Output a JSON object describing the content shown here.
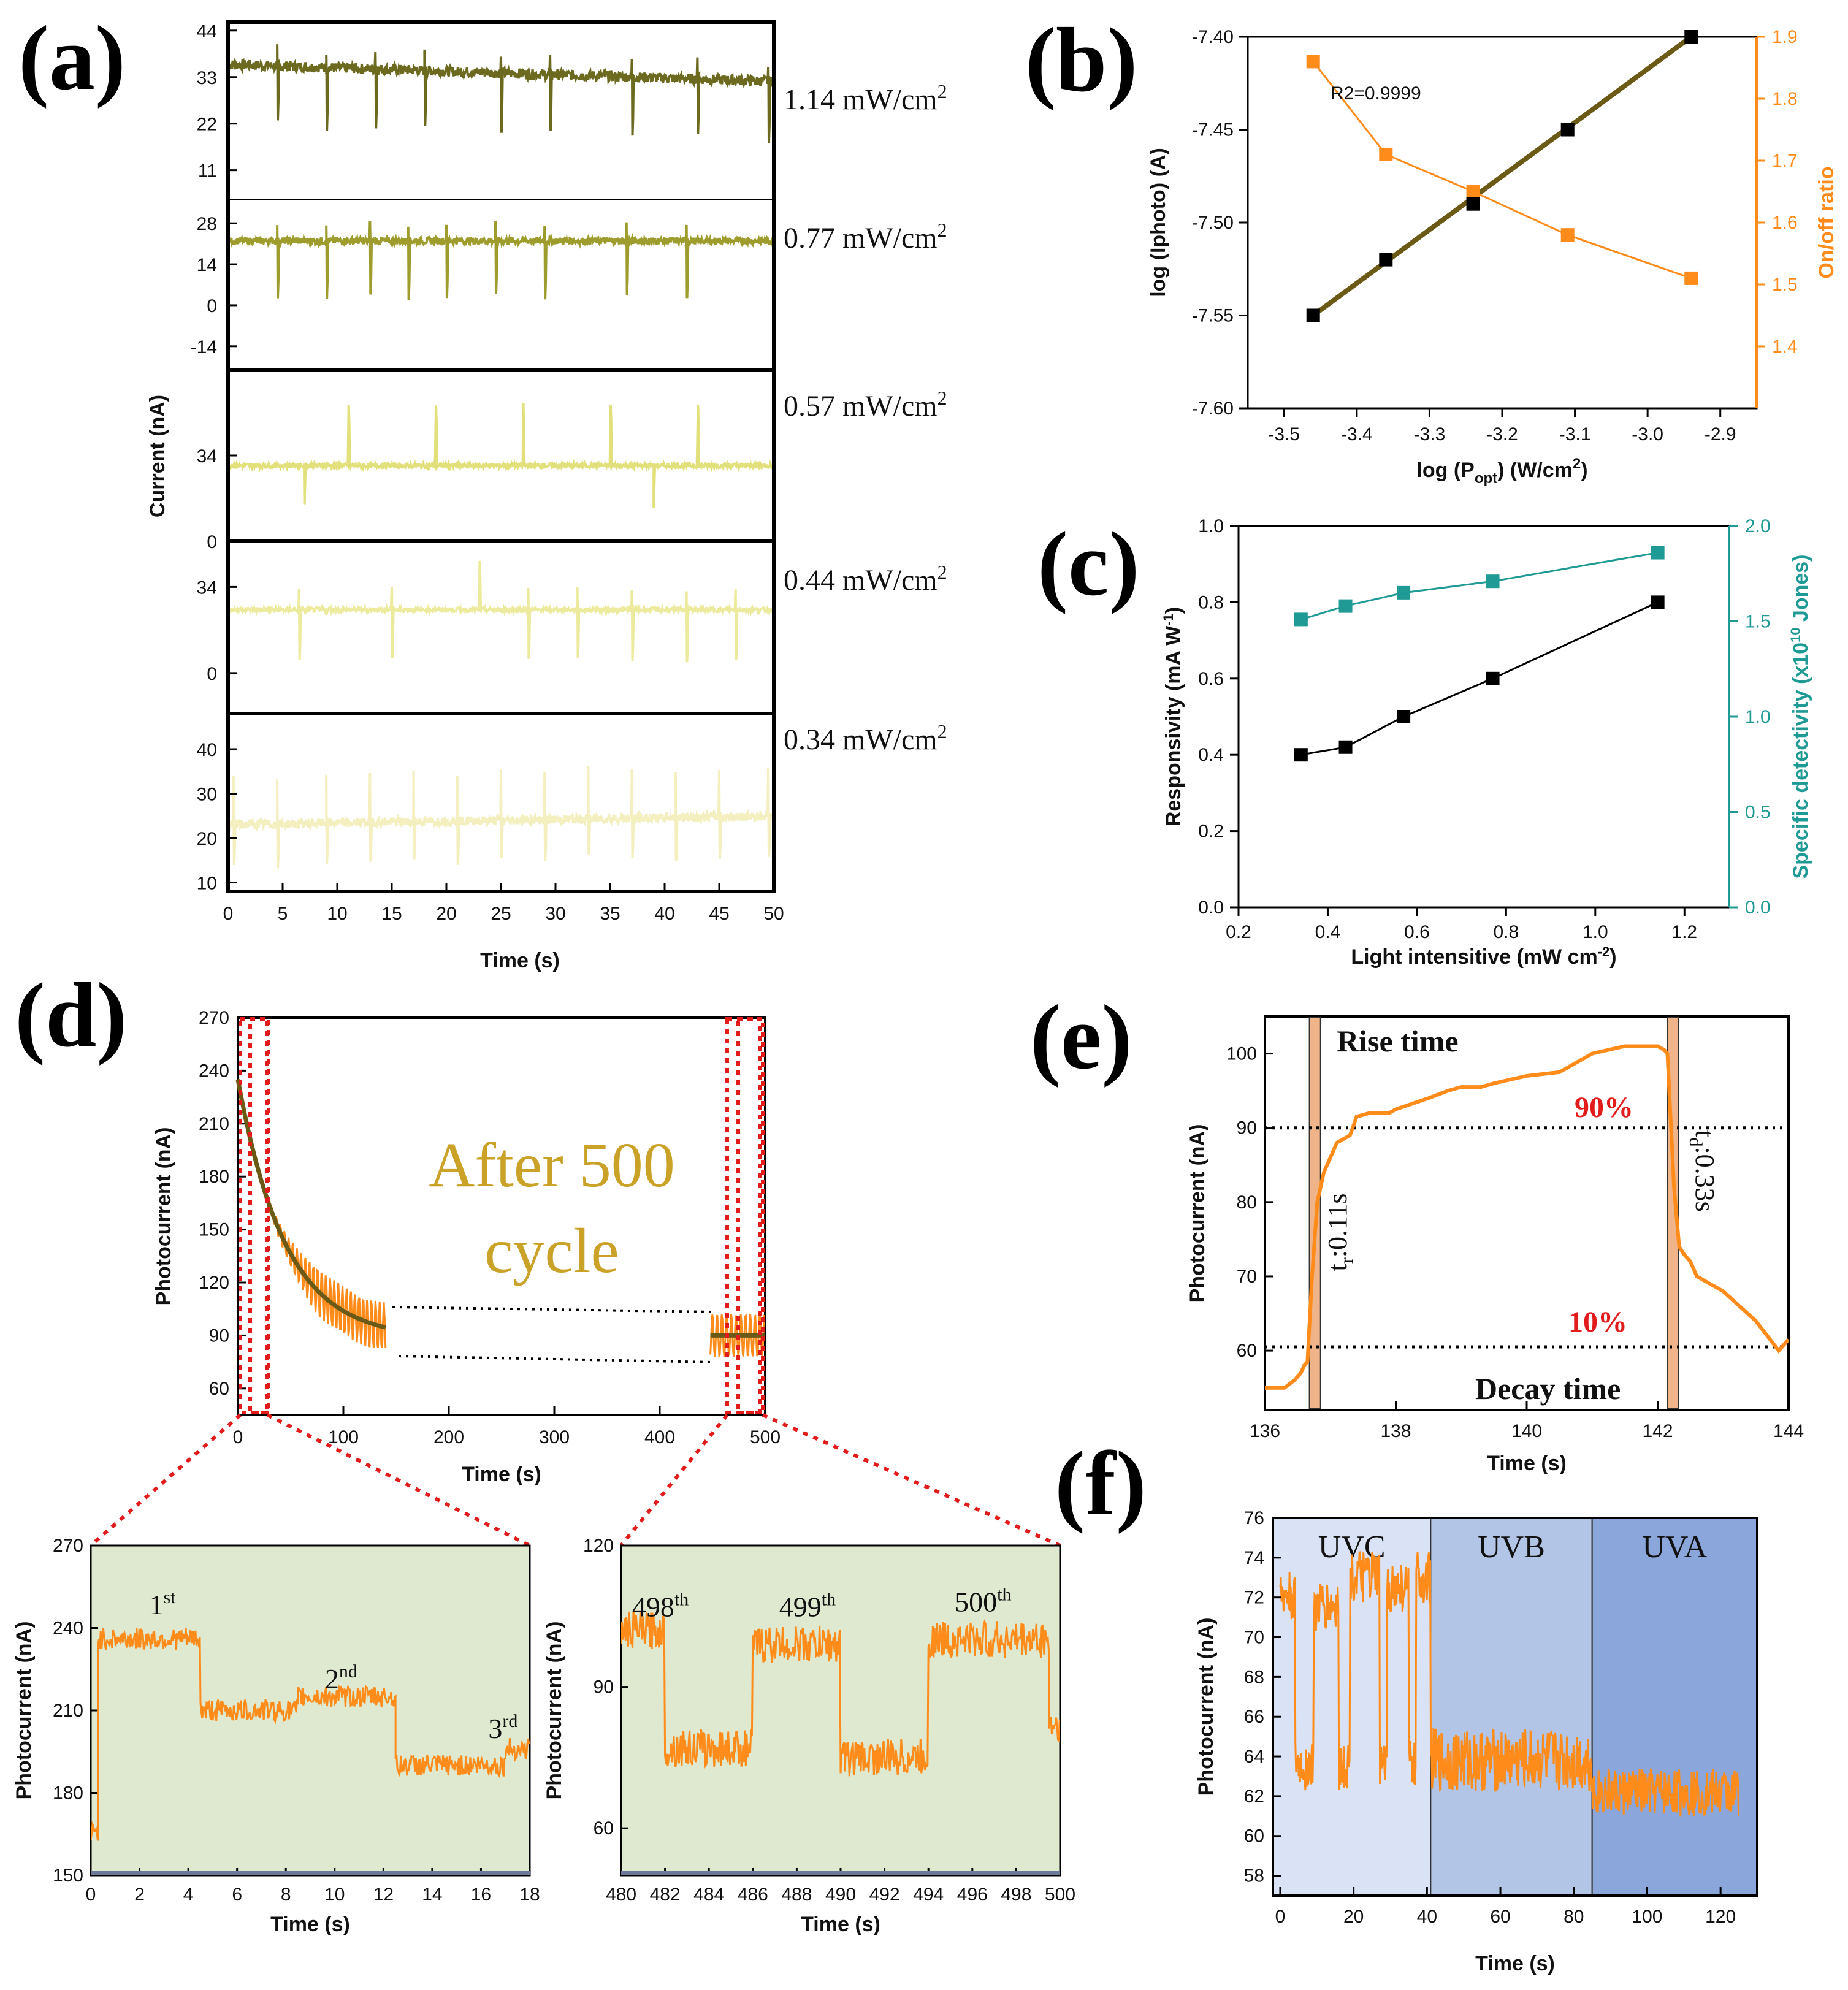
{
  "colors": {
    "olive_dark": "#6b6a1f",
    "olive": "#9d9c2c",
    "yellow_mid": "#e2e07a",
    "yellow_light": "#ecea9c",
    "yellow_pale": "#f3efbf",
    "orange": "#ff8c1a",
    "teal": "#1f9a95",
    "fit_line": "#6b5a16",
    "red_dash": "#e21b1b",
    "green_bg": "#dfe9cf",
    "uvc_bg": "#d9e3f5",
    "uvb_bg": "#b2c5e6",
    "uva_bg": "#8aa6db",
    "gold_text": "#c9a227",
    "bar_fill": "#f0b48a"
  },
  "panel_letters": {
    "a": "(a)",
    "b": "(b)",
    "c": "(c)",
    "d": "(d)",
    "e": "(e)",
    "f": "(f)"
  },
  "chart_data": [
    {
      "id": "a",
      "type": "line",
      "title": "",
      "xlabel": "Time (s)",
      "ylabel": "Current (nA)",
      "xlim": [
        0,
        50
      ],
      "xticks": [
        "0",
        "5",
        "10",
        "15",
        "20",
        "25",
        "30",
        "35",
        "40",
        "45",
        "50"
      ],
      "series": [
        {
          "name": "1.14 mW/cm2",
          "label": "1.14 mW/cm",
          "sup": "2",
          "ylim": [
            4,
            46
          ],
          "yticks": [
            44,
            33,
            22,
            11
          ],
          "ytick_labels": [
            "44",
            "33",
            "22",
            "11"
          ],
          "baseline": 36,
          "end": 32,
          "spike_times": [
            4.5,
            9,
            13.5,
            18,
            25,
            29.5,
            37,
            43,
            49.5
          ],
          "spike_depth": -14,
          "spike_up": 4,
          "noise": 1.2
        },
        {
          "name": "0.77 mW/cm2",
          "label": "0.77 mW/cm",
          "sup": "2",
          "ylim": [
            -22,
            36
          ],
          "yticks": [
            28,
            14,
            0,
            -14
          ],
          "ytick_labels": [
            "28",
            "14",
            "0",
            "-14"
          ],
          "baseline": 22,
          "end": 22,
          "spike_times": [
            4.5,
            9,
            13,
            16.5,
            20,
            24.5,
            29,
            36.5,
            42
          ],
          "spike_depth": -19,
          "spike_up": 6,
          "noise": 1.2
        },
        {
          "name": "0.57 mW/cm2",
          "label": "0.57 mW/cm",
          "sup": "2",
          "ylim": [
            0,
            68
          ],
          "yticks": [
            34,
            0
          ],
          "ytick_labels": [
            "34",
            "0"
          ],
          "baseline": 30,
          "end": 30,
          "spike_times": [
            11,
            19,
            27,
            35,
            43
          ],
          "spike_depth": 24,
          "spike_up": 0,
          "dips": [
            7,
            39
          ],
          "noise": 0.9
        },
        {
          "name": "0.44 mW/cm2",
          "label": "0.44 mW/cm",
          "sup": "2",
          "ylim": [
            -16,
            52
          ],
          "yticks": [
            34,
            0
          ],
          "ytick_labels": [
            "34",
            "0"
          ],
          "baseline": 25,
          "end": 25,
          "spike_times": [
            6.5,
            15,
            23,
            27.5,
            32,
            37,
            42,
            46.5
          ],
          "spike_depth": -20,
          "spike_up": 8,
          "big_up": 19,
          "noise": 0.9
        },
        {
          "name": "0.34 mW/cm2",
          "label": "0.34 mW/cm",
          "sup": "2",
          "ylim": [
            8,
            48
          ],
          "yticks": [
            40,
            30,
            20,
            10
          ],
          "ytick_labels": [
            "40",
            "30",
            "20",
            "10"
          ],
          "baseline": 23,
          "end": 25,
          "spike_times": [
            0.5,
            4.5,
            9,
            13,
            17,
            21,
            25,
            29,
            33,
            37,
            41,
            45,
            49.5
          ],
          "spike_depth": -9,
          "spike_up": 11,
          "noise": 1.0
        }
      ]
    },
    {
      "id": "b",
      "type": "line",
      "xlabel": "log (P",
      "xlabel_sub": "opt",
      "xlabel_tail": ") (W/cm",
      "xlabel_sup": "2",
      "xlabel_end": ")",
      "ylabel": "log (Iphoto) (A)",
      "ylabel_right": "On/off ratio",
      "annotation": "R2=0.9999",
      "xlim": [
        -3.55,
        -2.85
      ],
      "ylim": [
        -7.6,
        -7.4
      ],
      "ylim_right": [
        1.3,
        1.9
      ],
      "xticks": [
        "-3.5",
        "-3.4",
        "-3.3",
        "-3.2",
        "-3.1",
        "-3.0",
        "-2.9"
      ],
      "yticks": [
        "-7.60",
        "-7.55",
        "-7.50",
        "-7.45",
        "-7.40"
      ],
      "yticks_right": [
        "1.4",
        "1.5",
        "1.6",
        "1.7",
        "1.8",
        "1.9"
      ],
      "x": [
        -3.46,
        -3.36,
        -3.24,
        -3.11,
        -2.94
      ],
      "series": [
        {
          "name": "log (Iphoto)",
          "axis": "left",
          "values": [
            -7.55,
            -7.52,
            -7.49,
            -7.45,
            -7.4
          ]
        },
        {
          "name": "On/off ratio",
          "axis": "right",
          "values": [
            1.86,
            1.71,
            1.65,
            1.58,
            1.51
          ]
        }
      ]
    },
    {
      "id": "c",
      "type": "line",
      "xlabel": "Light intensitive (mW cm",
      "xlabel_sup": "-2",
      "xlabel_end": ")",
      "ylabel": "Responsivity (mA W",
      "ylabel_sup": "-1",
      "ylabel_end": ")",
      "ylabel_right": "Specific detectivity (x10",
      "ylabel_right_sup": "10",
      "ylabel_right_end": " Jones)",
      "xlim": [
        0.2,
        1.3
      ],
      "ylim": [
        0.0,
        1.0
      ],
      "ylim_right": [
        0.0,
        2.0
      ],
      "xticks": [
        "0.2",
        "0.4",
        "0.6",
        "0.8",
        "1.0",
        "1.2"
      ],
      "yticks": [
        "0.0",
        "0.2",
        "0.4",
        "0.6",
        "0.8",
        "1.0"
      ],
      "yticks_right": [
        "0.0",
        "0.5",
        "1.0",
        "1.5",
        "2.0"
      ],
      "x": [
        0.34,
        0.44,
        0.57,
        0.77,
        1.14
      ],
      "series": [
        {
          "name": "Responsivity",
          "axis": "left",
          "values": [
            0.4,
            0.42,
            0.5,
            0.6,
            0.8
          ]
        },
        {
          "name": "Specific detectivity",
          "axis": "right",
          "values": [
            1.51,
            1.58,
            1.65,
            1.71,
            1.86
          ]
        }
      ]
    },
    {
      "id": "d",
      "type": "line",
      "xlabel": "Time (s)",
      "ylabel": "Photocurrent (nA)",
      "annotation": "After 500",
      "annotation2": "cycle",
      "xlim": [
        0,
        500
      ],
      "ylim": [
        45,
        270
      ],
      "xticks": [
        "0",
        "100",
        "200",
        "300",
        "400",
        "500"
      ],
      "yticks": [
        "60",
        "90",
        "120",
        "150",
        "180",
        "210",
        "240",
        "270"
      ],
      "fit": {
        "start": 235,
        "plateau": 88,
        "tau": 45,
        "x_end": 140
      },
      "late_level": 90,
      "insets": [
        {
          "xlabel": "Time (s)",
          "ylabel": "Photocurrent (nA)",
          "xlim": [
            0,
            18
          ],
          "ylim": [
            150,
            270
          ],
          "xticks": [
            "0",
            "2",
            "4",
            "6",
            "8",
            "10",
            "12",
            "14",
            "16",
            "18"
          ],
          "yticks": [
            "150",
            "180",
            "210",
            "240",
            "270"
          ],
          "segments": [
            [
              0,
              0.3,
              165
            ],
            [
              0.3,
              4.5,
              236
            ],
            [
              4.5,
              8.5,
              210
            ],
            [
              8.5,
              12.5,
              215
            ],
            [
              12.5,
              17,
              190
            ],
            [
              17,
              18,
              196
            ]
          ],
          "labels": [
            {
              "text": "1",
              "sup": "st",
              "x": 2.4,
              "y": 245
            },
            {
              "text": "2",
              "sup": "nd",
              "x": 9.6,
              "y": 218
            },
            {
              "text": "3",
              "sup": "rd",
              "x": 16.3,
              "y": 200
            }
          ]
        },
        {
          "xlabel": "Time (s)",
          "ylabel": "Photocurrent (nA)",
          "xlim": [
            480,
            500
          ],
          "ylim": [
            50,
            120
          ],
          "xticks": [
            "480",
            "482",
            "484",
            "486",
            "488",
            "490",
            "492",
            "494",
            "496",
            "498",
            "500"
          ],
          "yticks": [
            "60",
            "90",
            "120"
          ],
          "segments": [
            [
              480,
              482,
              102
            ],
            [
              482,
              486,
              77
            ],
            [
              486,
              490,
              99
            ],
            [
              490,
              494,
              75
            ],
            [
              494,
              499.5,
              100
            ],
            [
              499.5,
              500,
              82
            ]
          ],
          "labels": [
            {
              "text": "498",
              "sup": "th",
              "x": 480.5,
              "y": 105
            },
            {
              "text": "499",
              "sup": "th",
              "x": 487.2,
              "y": 105
            },
            {
              "text": "500",
              "sup": "th",
              "x": 495.2,
              "y": 106
            }
          ]
        }
      ]
    },
    {
      "id": "e",
      "type": "line",
      "xlabel": "Time (s)",
      "ylabel": "Photocurrent (nA)",
      "xlim": [
        136,
        144
      ],
      "ylim": [
        52,
        105
      ],
      "xticks": [
        "136",
        "138",
        "140",
        "142",
        "144"
      ],
      "yticks": [
        "60",
        "70",
        "80",
        "90",
        "100"
      ],
      "level_high": 90,
      "level_low": 60.5,
      "level_high_label": "90%",
      "level_low_label": "10%",
      "rise_label": "Rise time",
      "decay_label": "Decay time",
      "tr_label": "t",
      "tr_sub": "r",
      "tr_value": ":0.11s",
      "td_label": "t",
      "td_sub": "d",
      "td_value": ":0.33s",
      "rise_band": [
        136.68,
        136.85
      ],
      "decay_band": [
        142.15,
        142.32
      ],
      "x": [
        136,
        136.3,
        136.45,
        136.55,
        136.6,
        136.65,
        136.72,
        136.8,
        136.9,
        137.0,
        137.1,
        137.3,
        137.4,
        137.6,
        137.9,
        138.0,
        138.5,
        138.8,
        139.0,
        139.3,
        139.5,
        140.0,
        140.5,
        141.0,
        141.5,
        142.0,
        142.1,
        142.15,
        142.25,
        142.33,
        142.4,
        142.5,
        142.6,
        143.0,
        143.5,
        143.85,
        144.0
      ],
      "values": [
        55,
        55,
        56,
        57,
        58,
        58.5,
        70,
        80,
        84,
        86,
        88,
        89,
        91.5,
        92,
        92,
        92.5,
        94,
        95,
        95.5,
        95.5,
        96,
        97,
        97.5,
        100,
        101,
        101,
        100.5,
        100,
        82,
        74,
        73,
        72,
        70,
        68,
        64,
        60,
        61.5
      ]
    },
    {
      "id": "f",
      "type": "line",
      "xlabel": "Time (s)",
      "ylabel": "Photocurrent (nA)",
      "xlim": [
        -2,
        130
      ],
      "ylim": [
        57,
        76
      ],
      "xticks": [
        "0",
        "20",
        "40",
        "60",
        "80",
        "100",
        "120"
      ],
      "yticks": [
        "58",
        "60",
        "62",
        "64",
        "66",
        "68",
        "70",
        "72",
        "74",
        "76"
      ],
      "regions": [
        {
          "name": "UVC",
          "from": -2,
          "to": 41
        },
        {
          "name": "UVB",
          "from": 41,
          "to": 85
        },
        {
          "name": "UVA",
          "from": 85,
          "to": 130
        }
      ],
      "uvc_pulses": [
        [
          0,
          4,
          72
        ],
        [
          9,
          16,
          71.5
        ],
        [
          19,
          27,
          73
        ],
        [
          29,
          35,
          72.5
        ],
        [
          37,
          41,
          73
        ]
      ],
      "uvc_low": 63.5,
      "uvb_level": 63.8,
      "uva_level": 62.2,
      "x_end": 125
    }
  ]
}
